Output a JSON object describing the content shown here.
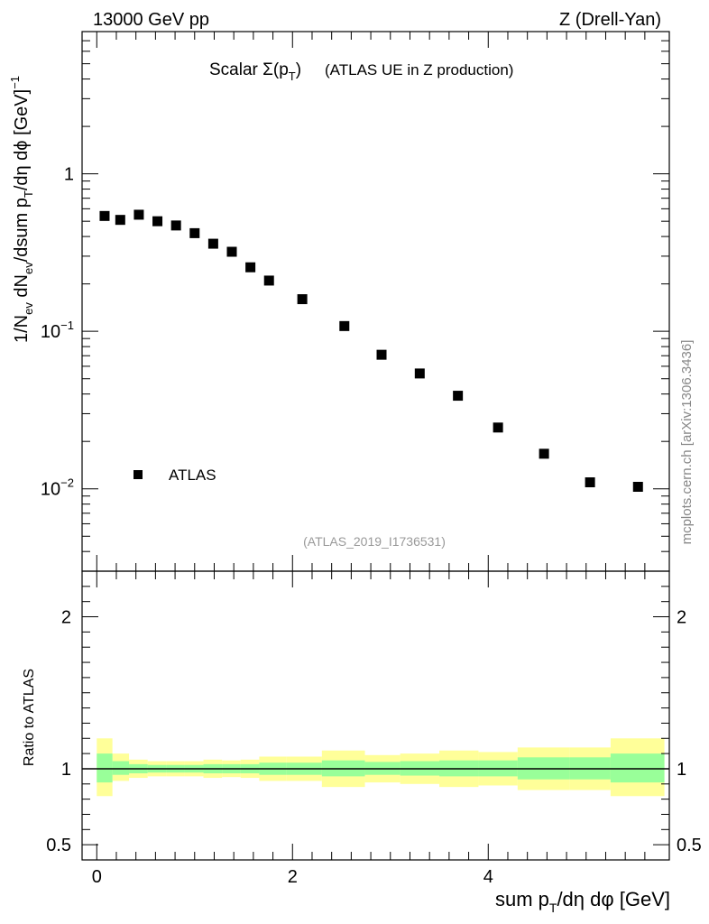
{
  "header": {
    "energy_label": "13000 GeV pp",
    "process_label": "Z (Drell-Yan)"
  },
  "side_label": "mcplots.cern.ch [arXiv:1306.3436]",
  "chart_data": [
    {
      "type": "scatter",
      "title_main": "Scalar Σ(p",
      "title_sub": "T",
      "title_close": ")",
      "title_rest": "(ATLAS UE in Z production)",
      "analysis_tag": "(ATLAS_2019_I1736531)",
      "ylabel": "1/N_ev dN_ev/dsum p_T/dη dφ [GeV]^-1",
      "yscale": "log",
      "ylim": [
        0.003,
        8
      ],
      "xlim": [
        -0.15,
        5.85
      ],
      "legend": {
        "label": "ATLAS",
        "placement": "bottom-left"
      },
      "y_tick_labels": [
        {
          "value": 1,
          "base": "1",
          "exp": ""
        },
        {
          "value": 0.1,
          "base": "10",
          "exp": "−1"
        },
        {
          "value": 0.01,
          "base": "10",
          "exp": "−2"
        }
      ],
      "series": [
        {
          "name": "ATLAS",
          "x": [
            0.08,
            0.24,
            0.43,
            0.62,
            0.81,
            1.0,
            1.19,
            1.38,
            1.57,
            1.76,
            2.1,
            2.53,
            2.91,
            3.3,
            3.69,
            4.1,
            4.57,
            5.04,
            5.53
          ],
          "y": [
            0.54,
            0.51,
            0.55,
            0.5,
            0.47,
            0.42,
            0.36,
            0.32,
            0.255,
            0.21,
            0.16,
            0.108,
            0.071,
            0.054,
            0.039,
            0.0245,
            0.0167,
            0.011,
            0.0103
          ]
        }
      ]
    },
    {
      "type": "band",
      "ylabel": "Ratio to ATLAS",
      "xlabel_main": "sum p",
      "xlabel_sub": "T",
      "xlabel_rest": "/dη dφ [GeV]",
      "ylim": [
        0.4,
        2.3
      ],
      "xlim": [
        -0.15,
        5.85
      ],
      "x_tick_labels": [
        "0",
        "2",
        "4"
      ],
      "y_tick_labels": [
        "2",
        "1",
        "0.5"
      ],
      "reference": 1,
      "bins": [
        {
          "lo": 0.0,
          "hi": 0.16,
          "green": [
            0.91,
            1.1
          ],
          "yellow": [
            0.82,
            1.2
          ]
        },
        {
          "lo": 0.16,
          "hi": 0.33,
          "green": [
            0.96,
            1.05
          ],
          "yellow": [
            0.92,
            1.1
          ]
        },
        {
          "lo": 0.33,
          "hi": 0.52,
          "green": [
            0.97,
            1.03
          ],
          "yellow": [
            0.94,
            1.06
          ]
        },
        {
          "lo": 0.52,
          "hi": 0.71,
          "green": [
            0.975,
            1.025
          ],
          "yellow": [
            0.95,
            1.05
          ]
        },
        {
          "lo": 0.71,
          "hi": 0.9,
          "green": [
            0.975,
            1.025
          ],
          "yellow": [
            0.95,
            1.05
          ]
        },
        {
          "lo": 0.9,
          "hi": 1.09,
          "green": [
            0.975,
            1.025
          ],
          "yellow": [
            0.95,
            1.05
          ]
        },
        {
          "lo": 1.09,
          "hi": 1.28,
          "green": [
            0.97,
            1.03
          ],
          "yellow": [
            0.94,
            1.06
          ]
        },
        {
          "lo": 1.28,
          "hi": 1.47,
          "green": [
            0.97,
            1.03
          ],
          "yellow": [
            0.945,
            1.055
          ]
        },
        {
          "lo": 1.47,
          "hi": 1.66,
          "green": [
            0.97,
            1.03
          ],
          "yellow": [
            0.94,
            1.06
          ]
        },
        {
          "lo": 1.66,
          "hi": 1.94,
          "green": [
            0.96,
            1.04
          ],
          "yellow": [
            0.92,
            1.08
          ]
        },
        {
          "lo": 1.94,
          "hi": 2.3,
          "green": [
            0.96,
            1.04
          ],
          "yellow": [
            0.92,
            1.08
          ]
        },
        {
          "lo": 2.3,
          "hi": 2.74,
          "green": [
            0.95,
            1.055
          ],
          "yellow": [
            0.88,
            1.12
          ]
        },
        {
          "lo": 2.74,
          "hi": 3.1,
          "green": [
            0.96,
            1.045
          ],
          "yellow": [
            0.91,
            1.09
          ]
        },
        {
          "lo": 3.1,
          "hi": 3.5,
          "green": [
            0.955,
            1.05
          ],
          "yellow": [
            0.9,
            1.1
          ]
        },
        {
          "lo": 3.5,
          "hi": 3.9,
          "green": [
            0.95,
            1.055
          ],
          "yellow": [
            0.88,
            1.12
          ]
        },
        {
          "lo": 3.9,
          "hi": 4.3,
          "green": [
            0.95,
            1.055
          ],
          "yellow": [
            0.89,
            1.11
          ]
        },
        {
          "lo": 4.3,
          "hi": 4.83,
          "green": [
            0.93,
            1.075
          ],
          "yellow": [
            0.86,
            1.14
          ]
        },
        {
          "lo": 4.83,
          "hi": 5.25,
          "green": [
            0.93,
            1.075
          ],
          "yellow": [
            0.86,
            1.14
          ]
        },
        {
          "lo": 5.25,
          "hi": 5.8,
          "green": [
            0.91,
            1.1
          ],
          "yellow": [
            0.82,
            1.2
          ]
        }
      ]
    }
  ],
  "colors": {
    "green_band": "#99ff99",
    "yellow_band": "#ffff99",
    "marker": "#000000"
  }
}
